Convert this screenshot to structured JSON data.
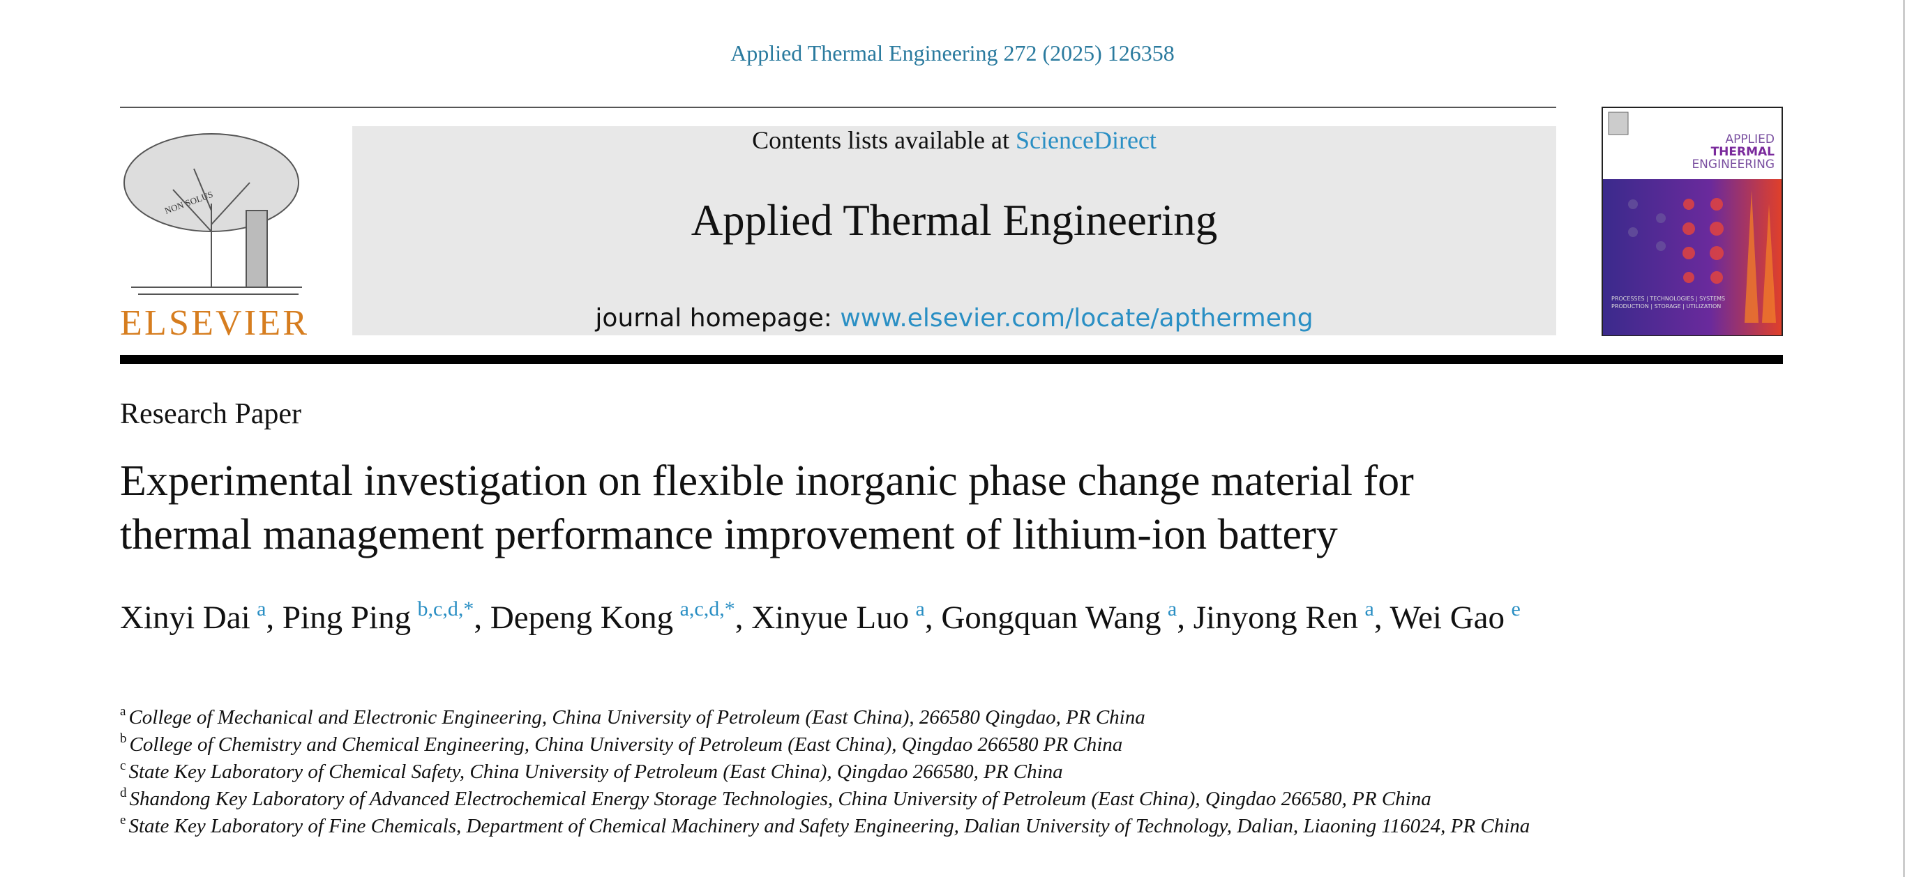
{
  "header": {
    "citation": "Applied Thermal Engineering 272 (2025) 126358",
    "contents_prefix": "Contents lists available at ",
    "contents_link": "ScienceDirect",
    "journal": "Applied Thermal Engineering",
    "homepage_label": "journal homepage: ",
    "homepage_url": "www.elsevier.com/locate/apthermeng"
  },
  "logo": {
    "publisher": "ELSEVIER",
    "motto": "NON SOLUS"
  },
  "cover": {
    "line1": "APPLIED",
    "line2": "THERMAL",
    "line3": "ENGINEERING",
    "footer1": "PROCESSES | TECHNOLOGIES | SYSTEMS",
    "footer2": "PRODUCTION | STORAGE | UTILIZATION"
  },
  "article": {
    "type": "Research Paper",
    "title_lines": [
      "Experimental investigation on flexible inorganic phase change material for",
      "thermal management performance improvement of lithium-ion battery"
    ],
    "authors": [
      {
        "name": "Xinyi Dai",
        "sup": "a"
      },
      {
        "name": "Ping Ping",
        "sup": "b,c,d,*"
      },
      {
        "name": "Depeng Kong",
        "sup": "a,c,d,*"
      },
      {
        "name": "Xinyue Luo",
        "sup": "a"
      },
      {
        "name": "Gongquan Wang",
        "sup": "a"
      },
      {
        "name": "Jinyong Ren",
        "sup": "a"
      },
      {
        "name": "Wei Gao",
        "sup": "e"
      }
    ],
    "affiliations": [
      {
        "sup": "a",
        "text": "College of Mechanical and Electronic Engineering, China University of Petroleum (East China), 266580 Qingdao, PR China"
      },
      {
        "sup": "b",
        "text": "College of Chemistry and Chemical Engineering, China University of Petroleum (East China), Qingdao 266580 PR China"
      },
      {
        "sup": "c",
        "text": "State Key Laboratory of Chemical Safety, China University of Petroleum (East China), Qingdao 266580, PR China"
      },
      {
        "sup": "d",
        "text": "Shandong Key Laboratory of Advanced Electrochemical Energy Storage Technologies, China University of Petroleum (East China), Qingdao 266580, PR China"
      },
      {
        "sup": "e",
        "text": "State Key Laboratory of Fine Chemicals, Department of Chemical Machinery and Safety Engineering, Dalian University of Technology, Dalian, Liaoning 116024, PR China"
      }
    ]
  }
}
